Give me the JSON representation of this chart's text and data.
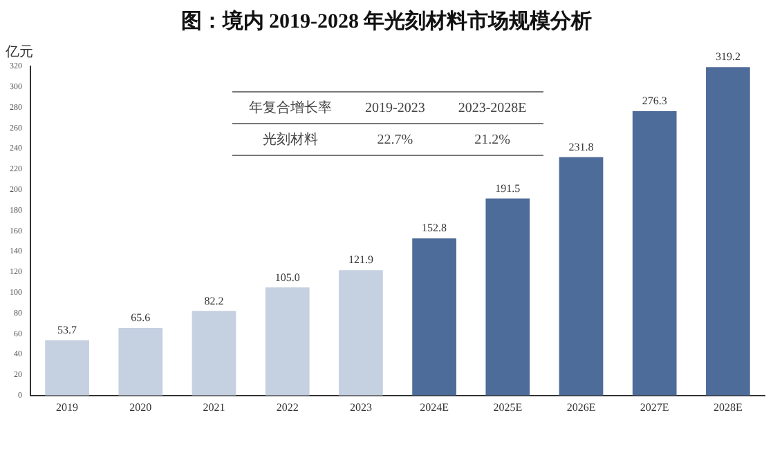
{
  "chart_data": {
    "type": "bar",
    "title": "图：境内 2019-2028 年光刻材料市场规模分析",
    "ylabel": "亿元",
    "categories": [
      "2019",
      "2020",
      "2021",
      "2022",
      "2023",
      "2024E",
      "2025E",
      "2026E",
      "2027E",
      "2028E"
    ],
    "values": [
      53.7,
      65.6,
      82.2,
      105.0,
      121.9,
      152.8,
      191.5,
      231.8,
      276.3,
      319.2
    ],
    "colors": [
      "#c5d0e1",
      "#c5d0e1",
      "#c5d0e1",
      "#c5d0e1",
      "#c5d0e1",
      "#4e6c99",
      "#4e6c99",
      "#4e6c99",
      "#4e6c99",
      "#4e6c99"
    ],
    "value_labels": [
      "53.7",
      "65.6",
      "82.2",
      "105.0",
      "121.9",
      "152.8",
      "191.5",
      "231.8",
      "276.3",
      "319.2"
    ],
    "ylim": [
      0,
      320
    ],
    "yticks": [
      0,
      20,
      40,
      60,
      80,
      100,
      120,
      140,
      160,
      180,
      200,
      220,
      240,
      260,
      280,
      300,
      320
    ],
    "grid": false,
    "legend": false,
    "annotations": [
      "年复合增长率",
      "2019-2023",
      "2023-2028E",
      "光刻材料",
      "22.7%",
      "21.2%"
    ]
  }
}
